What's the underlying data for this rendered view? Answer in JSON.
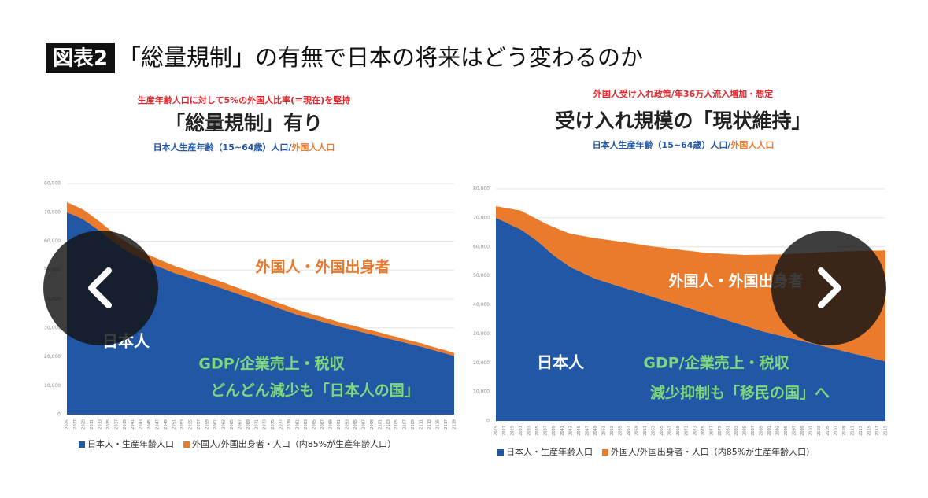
{
  "header": {
    "badge": "図表2",
    "title": "「総量規制」の有無で日本の将来はどう変わるのか"
  },
  "chart_data": [
    {
      "type": "stacked-area",
      "note": "生産年齢人口に対して5%の外国人比率(＝現在)を堅持",
      "title": "「総量規制」有り",
      "subtitle_japanese": "日本人生産年齢（15~64歳）人口/",
      "subtitle_foreign": "外国人人口",
      "annotations": [
        "外国人・外国出身者",
        "日本人",
        "GDP/企業売上・税収",
        "どんどん減少も「日本人の国」"
      ],
      "categories": [
        "2025",
        "2027",
        "2029",
        "2031",
        "2033",
        "2035",
        "2037",
        "2039",
        "2041",
        "2043",
        "2045",
        "2047",
        "2049",
        "2051",
        "2053",
        "2055",
        "2057",
        "2059",
        "2061",
        "2063",
        "2065",
        "2067",
        "2069",
        "2071",
        "2073",
        "2075",
        "2077",
        "2079",
        "2081",
        "2083",
        "2085",
        "2087",
        "2089",
        "2091",
        "2093",
        "2095",
        "2097",
        "2099",
        "2101",
        "2103",
        "2105",
        "2107",
        "2109",
        "2111",
        "2113",
        "2115",
        "2117",
        "2119"
      ],
      "series": [
        {
          "name": "日本人・生産年齢人口",
          "color": "#2257a5",
          "values": [
            70000,
            68800,
            67500,
            65500,
            63500,
            61300,
            59000,
            57200,
            55500,
            54000,
            52500,
            51300,
            50200,
            49000,
            48100,
            47200,
            46300,
            45400,
            44500,
            43500,
            42500,
            41500,
            40500,
            39500,
            38500,
            37500,
            36500,
            35500,
            34500,
            33700,
            32900,
            32100,
            31300,
            30500,
            29800,
            29100,
            28400,
            27700,
            27000,
            26300,
            25600,
            24900,
            24200,
            23500,
            22700,
            21900,
            21100,
            20300
          ]
        },
        {
          "name": "外国人/外国出身者・人口（内85%が生産年齢人口）",
          "color": "#ea7b2c",
          "values": [
            3500,
            3400,
            3400,
            3300,
            3200,
            3100,
            3000,
            2900,
            2800,
            2700,
            2600,
            2600,
            2500,
            2500,
            2400,
            2400,
            2300,
            2300,
            2200,
            2200,
            2100,
            2100,
            2000,
            2000,
            1900,
            1900,
            1800,
            1800,
            1700,
            1700,
            1600,
            1600,
            1600,
            1500,
            1500,
            1500,
            1400,
            1400,
            1400,
            1300,
            1300,
            1200,
            1200,
            1200,
            1100,
            1100,
            1100,
            1000
          ]
        }
      ],
      "ylim": [
        0,
        80000
      ],
      "yticks": [
        0,
        {
          "value": 10000,
          "label": "10,000"
        },
        {
          "value": 20000,
          "label": "20,000"
        },
        {
          "value": 30000,
          "label": "30,000"
        },
        {
          "value": 40000,
          "label": "40,000"
        },
        {
          "value": 50000,
          "label": "50,000"
        },
        {
          "value": 60000,
          "label": "60,000"
        },
        {
          "value": 70000,
          "label": "70,000"
        },
        {
          "value": 80000,
          "label": "80,000"
        }
      ],
      "grid": true
    },
    {
      "type": "stacked-area",
      "note": "外国人受け入れ政策/年36万人流入増加・想定",
      "title": "受け入れ規模の「現状維持」",
      "subtitle_japanese": "日本人生産年齢（15~64歳）人口/",
      "subtitle_foreign": "外国人人口",
      "annotations": [
        "外国人・外国出身者",
        "日本人",
        "GDP/企業売上・税収",
        "減少抑制も「移民の国」へ"
      ],
      "categories": [
        "2025",
        "2027",
        "2029",
        "2031",
        "2033",
        "2035",
        "2037",
        "2039",
        "2041",
        "2043",
        "2045",
        "2047",
        "2049",
        "2051",
        "2053",
        "2055",
        "2057",
        "2059",
        "2061",
        "2063",
        "2065",
        "2067",
        "2069",
        "2071",
        "2073",
        "2075",
        "2077",
        "2079",
        "2081",
        "2083",
        "2085",
        "2087",
        "2089",
        "2091",
        "2093",
        "2095",
        "2097",
        "2099",
        "2101",
        "2103",
        "2105",
        "2107",
        "2109",
        "2111",
        "2113",
        "2115",
        "2117",
        "2119"
      ],
      "series": [
        {
          "name": "日本人・生産年齢人口",
          "color": "#2257a5",
          "values": [
            70000,
            68700,
            67300,
            66000,
            64000,
            62000,
            59500,
            57000,
            55000,
            53000,
            51700,
            50300,
            49000,
            48100,
            47200,
            46300,
            45400,
            44500,
            43600,
            42700,
            41800,
            40900,
            40000,
            39100,
            38200,
            37300,
            36400,
            35500,
            34600,
            33700,
            32800,
            31900,
            31000,
            30300,
            29600,
            28900,
            28200,
            27500,
            26800,
            26100,
            25400,
            24700,
            24000,
            23300,
            22600,
            21900,
            21200,
            20500
          ]
        },
        {
          "name": "外国人/外国出身者・人口（内85%が生産年齢人口）",
          "color": "#ea7b2c",
          "values": [
            4000,
            4800,
            5700,
            6500,
            7000,
            7500,
            8500,
            9800,
            10600,
            11500,
            12300,
            13200,
            14000,
            14500,
            15000,
            15500,
            16000,
            16500,
            16900,
            17400,
            18000,
            18500,
            19100,
            19600,
            20200,
            20700,
            21400,
            22200,
            22900,
            23700,
            24400,
            25400,
            26300,
            27100,
            27800,
            28600,
            29400,
            30300,
            31100,
            32000,
            32800,
            33600,
            34400,
            35200,
            36000,
            36800,
            37500,
            38300
          ]
        }
      ],
      "ylim": [
        0,
        80000
      ],
      "yticks": [
        0,
        {
          "value": 10000,
          "label": "10,000"
        },
        {
          "value": 20000,
          "label": "20,000"
        },
        {
          "value": 30000,
          "label": "30,000"
        },
        {
          "value": 40000,
          "label": "40,000"
        },
        {
          "value": 50000,
          "label": "50,000"
        },
        {
          "value": 60000,
          "label": "60,000"
        },
        {
          "value": 70000,
          "label": "70,000"
        },
        {
          "value": 80000,
          "label": "80,000"
        }
      ],
      "grid": true
    }
  ]
}
